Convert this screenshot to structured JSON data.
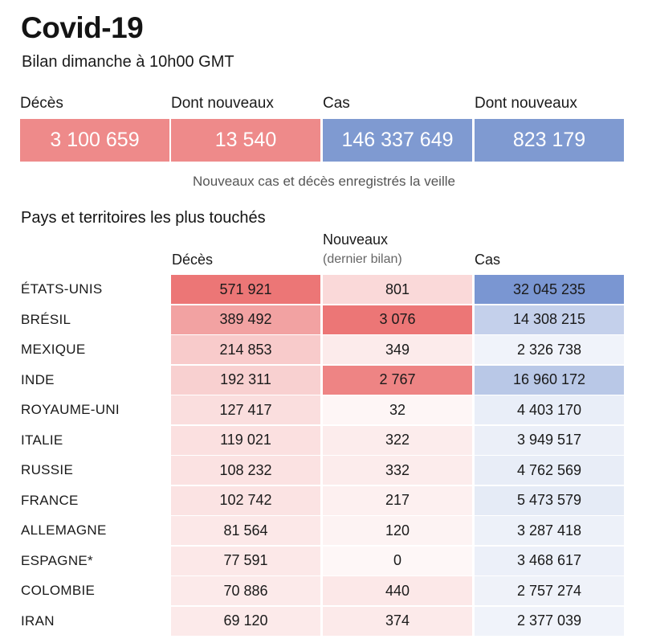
{
  "header": {
    "title": "Covid-19",
    "subtitle": "Bilan dimanche à 10h00 GMT"
  },
  "summary": [
    {
      "label": "Décès",
      "value": "3 100 659",
      "color": "#ee8a8a"
    },
    {
      "label": "Dont nouveaux",
      "value": "13 540",
      "color": "#ee8a8a"
    },
    {
      "label": "Cas",
      "value": "146 337 649",
      "color": "#7f9ad1"
    },
    {
      "label": "Dont nouveaux",
      "value": "823 179",
      "color": "#7f9ad1"
    }
  ],
  "note": "Nouveaux cas et décès enregistrés la veille",
  "section_title": "Pays et territoires les plus touchés",
  "columns": {
    "deaths": "Décès",
    "new": "Nouveaux",
    "new_sub": "(dernier bilan)",
    "cases": "Cas"
  },
  "colors": {
    "red_scale": "#ec7676",
    "blue_scale": "#7a96d2"
  },
  "chart_data": {
    "type": "table",
    "columns": [
      "Décès",
      "Nouveaux (dernier bilan)",
      "Cas"
    ],
    "rows": [
      {
        "country": "ÉTATS-UNIS",
        "deaths": 571921,
        "deaths_label": "571 921",
        "new": 801,
        "new_label": "801",
        "cases": 32045235,
        "cases_label": "32 045 235"
      },
      {
        "country": "BRÉSIL",
        "deaths": 389492,
        "deaths_label": "389 492",
        "new": 3076,
        "new_label": "3 076",
        "cases": 14308215,
        "cases_label": "14 308 215"
      },
      {
        "country": "MEXIQUE",
        "deaths": 214853,
        "deaths_label": "214 853",
        "new": 349,
        "new_label": "349",
        "cases": 2326738,
        "cases_label": "2 326 738"
      },
      {
        "country": "INDE",
        "deaths": 192311,
        "deaths_label": "192 311",
        "new": 2767,
        "new_label": "2 767",
        "cases": 16960172,
        "cases_label": "16 960 172"
      },
      {
        "country": "ROYAUME-UNI",
        "deaths": 127417,
        "deaths_label": "127 417",
        "new": 32,
        "new_label": "32",
        "cases": 4403170,
        "cases_label": "4 403 170"
      },
      {
        "country": "ITALIE",
        "deaths": 119021,
        "deaths_label": "119 021",
        "new": 322,
        "new_label": "322",
        "cases": 3949517,
        "cases_label": "3 949 517"
      },
      {
        "country": "RUSSIE",
        "deaths": 108232,
        "deaths_label": "108 232",
        "new": 332,
        "new_label": "332",
        "cases": 4762569,
        "cases_label": "4 762 569"
      },
      {
        "country": "FRANCE",
        "deaths": 102742,
        "deaths_label": "102 742",
        "new": 217,
        "new_label": "217",
        "cases": 5473579,
        "cases_label": "5 473 579"
      },
      {
        "country": "ALLEMAGNE",
        "deaths": 81564,
        "deaths_label": "81 564",
        "new": 120,
        "new_label": "120",
        "cases": 3287418,
        "cases_label": "3 287 418"
      },
      {
        "country": "ESPAGNE*",
        "deaths": 77591,
        "deaths_label": "77 591",
        "new": 0,
        "new_label": "0",
        "cases": 3468617,
        "cases_label": "3 468 617"
      },
      {
        "country": "COLOMBIE",
        "deaths": 70886,
        "deaths_label": "70 886",
        "new": 440,
        "new_label": "440",
        "cases": 2757274,
        "cases_label": "2 757 274"
      },
      {
        "country": "IRAN",
        "deaths": 69120,
        "deaths_label": "69 120",
        "new": 374,
        "new_label": "374",
        "cases": 2377039,
        "cases_label": "2 377 039"
      }
    ]
  }
}
